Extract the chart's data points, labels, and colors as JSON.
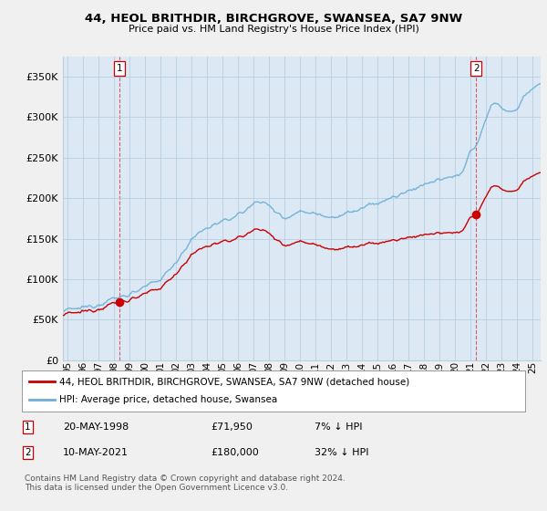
{
  "title_line1": "44, HEOL BRITHDIR, BIRCHGROVE, SWANSEA, SA7 9NW",
  "title_line2": "Price paid vs. HM Land Registry's House Price Index (HPI)",
  "ytick_values": [
    0,
    50000,
    100000,
    150000,
    200000,
    250000,
    300000,
    350000
  ],
  "ylim": [
    0,
    375000
  ],
  "xlim_start": 1994.7,
  "xlim_end": 2025.5,
  "hpi_color": "#6baed6",
  "price_color": "#cc0000",
  "marker_color": "#cc0000",
  "sale1_x": 1998.37,
  "sale1_y": 71950,
  "sale2_x": 2021.36,
  "sale2_y": 180000,
  "legend_label1": "44, HEOL BRITHDIR, BIRCHGROVE, SWANSEA, SA7 9NW (detached house)",
  "legend_label2": "HPI: Average price, detached house, Swansea",
  "note1_date1": "20-MAY-1998",
  "note1_price1": "£71,950",
  "note1_pct1": "7% ↓ HPI",
  "note2_date2": "10-MAY-2021",
  "note2_price2": "£180,000",
  "note2_pct2": "32% ↓ HPI",
  "footer": "Contains HM Land Registry data © Crown copyright and database right 2024.\nThis data is licensed under the Open Government Licence v3.0.",
  "background_color": "#f0f0f0",
  "plot_bg_color": "#dce9f5",
  "grid_color": "#b8cfe0",
  "xtick_years": [
    1995,
    1996,
    1997,
    1998,
    1999,
    2000,
    2001,
    2002,
    2003,
    2004,
    2005,
    2006,
    2007,
    2008,
    2009,
    2010,
    2011,
    2012,
    2013,
    2014,
    2015,
    2016,
    2017,
    2018,
    2019,
    2020,
    2021,
    2022,
    2023,
    2024,
    2025
  ]
}
